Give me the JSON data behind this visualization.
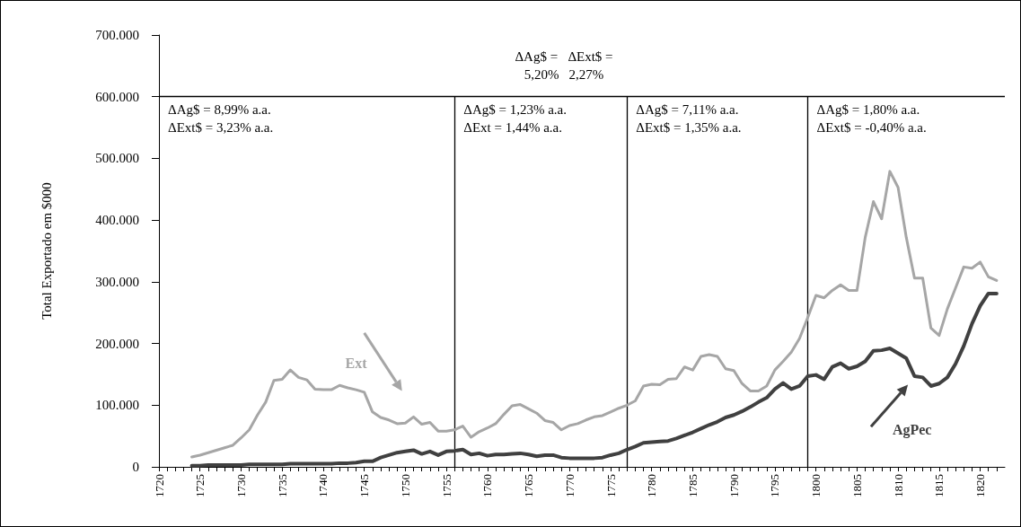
{
  "chart_data": {
    "type": "line",
    "ylabel": "Total Exportado em $000",
    "x": [
      1724,
      1725,
      1726,
      1727,
      1728,
      1729,
      1730,
      1731,
      1732,
      1733,
      1734,
      1735,
      1736,
      1737,
      1738,
      1739,
      1740,
      1741,
      1742,
      1743,
      1744,
      1745,
      1746,
      1747,
      1748,
      1749,
      1750,
      1751,
      1752,
      1753,
      1754,
      1755,
      1756,
      1757,
      1758,
      1759,
      1760,
      1761,
      1762,
      1763,
      1764,
      1765,
      1766,
      1767,
      1768,
      1769,
      1770,
      1771,
      1772,
      1773,
      1774,
      1775,
      1776,
      1777,
      1778,
      1779,
      1780,
      1781,
      1782,
      1783,
      1784,
      1785,
      1786,
      1787,
      1788,
      1789,
      1790,
      1791,
      1792,
      1793,
      1794,
      1795,
      1796,
      1797,
      1798,
      1799,
      1800,
      1801,
      1802,
      1803,
      1804,
      1805,
      1806,
      1807,
      1808,
      1809,
      1810,
      1811,
      1812,
      1813,
      1814,
      1815,
      1816,
      1817,
      1818,
      1819,
      1820,
      1821,
      1822
    ],
    "series": [
      {
        "name": "Ext",
        "color": "#a6a6a6",
        "values": [
          16000,
          19000,
          23000,
          27000,
          31000,
          35000,
          47000,
          60000,
          84000,
          105000,
          140000,
          142000,
          157000,
          145000,
          141000,
          126000,
          125000,
          125000,
          132000,
          128000,
          125000,
          121000,
          89000,
          80000,
          76000,
          70000,
          71000,
          81000,
          69000,
          72000,
          58000,
          58000,
          60000,
          66000,
          48000,
          57000,
          63000,
          70000,
          85000,
          99000,
          101000,
          94000,
          87000,
          75000,
          72000,
          60000,
          67000,
          70000,
          76000,
          81000,
          83000,
          89000,
          95000,
          100000,
          107000,
          131000,
          134000,
          133000,
          142000,
          143000,
          162000,
          157000,
          179000,
          182000,
          179000,
          159000,
          156000,
          135000,
          123000,
          123000,
          131000,
          157000,
          171000,
          186000,
          208000,
          242000,
          278000,
          274000,
          286000,
          295000,
          286000,
          286000,
          372000,
          430000,
          402000,
          479000,
          453000,
          372000,
          306000,
          306000,
          225000,
          213000,
          256000,
          290000,
          324000,
          322000,
          332000,
          308000,
          302000
        ]
      },
      {
        "name": "AgPec",
        "color": "#404040",
        "values": [
          2000,
          2000,
          3000,
          3000,
          3000,
          3000,
          3000,
          4000,
          4000,
          4000,
          4000,
          4000,
          5000,
          5000,
          5000,
          5000,
          5000,
          5000,
          6000,
          6000,
          7000,
          9000,
          9000,
          15000,
          19000,
          23000,
          25000,
          27000,
          21000,
          25000,
          19000,
          25000,
          26000,
          28000,
          20000,
          22000,
          18000,
          20000,
          20000,
          21000,
          22000,
          20000,
          17000,
          19000,
          19000,
          15000,
          14000,
          14000,
          14000,
          14000,
          15000,
          19000,
          22000,
          28000,
          33000,
          39000,
          40000,
          41000,
          42000,
          46000,
          51000,
          56000,
          62000,
          68000,
          73000,
          80000,
          84000,
          90000,
          97000,
          105000,
          112000,
          126000,
          136000,
          126000,
          131000,
          147000,
          149000,
          142000,
          162000,
          168000,
          159000,
          163000,
          171000,
          188000,
          189000,
          192000,
          184000,
          176000,
          147000,
          145000,
          131000,
          135000,
          145000,
          167000,
          196000,
          232000,
          261000,
          281000,
          281000
        ]
      }
    ],
    "xlim": [
      1720,
      1823
    ],
    "xticks": [
      1720,
      {
        "value": 1721,
        "label": null
      },
      {
        "value": 1722,
        "label": null
      },
      {
        "value": 1723,
        "label": null
      },
      {
        "value": 1724,
        "label": null
      },
      1725,
      {
        "value": 1726,
        "label": null
      },
      {
        "value": 1727,
        "label": null
      },
      {
        "value": 1728,
        "label": null
      },
      {
        "value": 1729,
        "label": null
      },
      1730,
      {
        "value": 1731,
        "label": null
      },
      {
        "value": 1732,
        "label": null
      },
      {
        "value": 1733,
        "label": null
      },
      {
        "value": 1734,
        "label": null
      },
      1735,
      {
        "value": 1736,
        "label": null
      },
      {
        "value": 1737,
        "label": null
      },
      {
        "value": 1738,
        "label": null
      },
      {
        "value": 1739,
        "label": null
      },
      1740,
      {
        "value": 1741,
        "label": null
      },
      {
        "value": 1742,
        "label": null
      },
      {
        "value": 1743,
        "label": null
      },
      {
        "value": 1744,
        "label": null
      },
      1745,
      {
        "value": 1746,
        "label": null
      },
      {
        "value": 1747,
        "label": null
      },
      {
        "value": 1748,
        "label": null
      },
      {
        "value": 1749,
        "label": null
      },
      1750,
      {
        "value": 1751,
        "label": null
      },
      {
        "value": 1752,
        "label": null
      },
      {
        "value": 1753,
        "label": null
      },
      {
        "value": 1754,
        "label": null
      },
      1755,
      {
        "value": 1756,
        "label": null
      },
      {
        "value": 1757,
        "label": null
      },
      {
        "value": 1758,
        "label": null
      },
      {
        "value": 1759,
        "label": null
      },
      1760,
      {
        "value": 1761,
        "label": null
      },
      {
        "value": 1762,
        "label": null
      },
      {
        "value": 1763,
        "label": null
      },
      {
        "value": 1764,
        "label": null
      },
      1765,
      {
        "value": 1766,
        "label": null
      },
      {
        "value": 1767,
        "label": null
      },
      {
        "value": 1768,
        "label": null
      },
      {
        "value": 1769,
        "label": null
      },
      1770,
      {
        "value": 1771,
        "label": null
      },
      {
        "value": 1772,
        "label": null
      },
      {
        "value": 1773,
        "label": null
      },
      {
        "value": 1774,
        "label": null
      },
      1775,
      {
        "value": 1776,
        "label": null
      },
      {
        "value": 1777,
        "label": null
      },
      {
        "value": 1778,
        "label": null
      },
      {
        "value": 1779,
        "label": null
      },
      1780,
      {
        "value": 1781,
        "label": null
      },
      {
        "value": 1782,
        "label": null
      },
      {
        "value": 1783,
        "label": null
      },
      {
        "value": 1784,
        "label": null
      },
      1785,
      {
        "value": 1786,
        "label": null
      },
      {
        "value": 1787,
        "label": null
      },
      {
        "value": 1788,
        "label": null
      },
      {
        "value": 1789,
        "label": null
      },
      1790,
      {
        "value": 1791,
        "label": null
      },
      {
        "value": 1792,
        "label": null
      },
      {
        "value": 1793,
        "label": null
      },
      {
        "value": 1794,
        "label": null
      },
      1795,
      {
        "value": 1796,
        "label": null
      },
      {
        "value": 1797,
        "label": null
      },
      {
        "value": 1798,
        "label": null
      },
      {
        "value": 1799,
        "label": null
      },
      1800,
      {
        "value": 1801,
        "label": null
      },
      {
        "value": 1802,
        "label": null
      },
      {
        "value": 1803,
        "label": null
      },
      {
        "value": 1804,
        "label": null
      },
      1805,
      {
        "value": 1806,
        "label": null
      },
      {
        "value": 1807,
        "label": null
      },
      {
        "value": 1808,
        "label": null
      },
      {
        "value": 1809,
        "label": null
      },
      1810,
      {
        "value": 1811,
        "label": null
      },
      {
        "value": 1812,
        "label": null
      },
      {
        "value": 1813,
        "label": null
      },
      {
        "value": 1814,
        "label": null
      },
      1815,
      {
        "value": 1816,
        "label": null
      },
      {
        "value": 1817,
        "label": null
      },
      {
        "value": 1818,
        "label": null
      },
      {
        "value": 1819,
        "label": null
      },
      1820,
      {
        "value": 1821,
        "label": null
      },
      {
        "value": 1822,
        "label": null
      }
    ],
    "ylim": [
      0,
      700000
    ],
    "yticks": [
      0,
      {
        "value": 100000,
        "label": "100.000"
      },
      {
        "value": 200000,
        "label": "200.000"
      },
      {
        "value": 300000,
        "label": "300.000"
      },
      {
        "value": 400000,
        "label": "400.000"
      },
      {
        "value": 500000,
        "label": "500.000"
      },
      {
        "value": 600000,
        "label": "600.000"
      },
      {
        "value": 700000,
        "label": "700.000"
      }
    ],
    "ref_lines": [
      {
        "axis": "y",
        "value": 600000,
        "color": "#000000"
      },
      {
        "axis": "x",
        "value": 1756,
        "color": "#000000"
      },
      {
        "axis": "x",
        "value": 1777,
        "color": "#000000"
      },
      {
        "axis": "x",
        "value": 1799,
        "color": "#000000"
      }
    ],
    "annotations": [
      "ΔAg$ =   ΔExt$ =\n5,20%   2,27%",
      "ΔAg$ = 8,99% a.a.\nΔExt$ = 3,23% a.a.",
      "ΔAg$ = 1,23% a.a.\nΔExt = 1,44% a.a.",
      "ΔAg$ = 7,11% a.a.\nΔExt$ = 1,35% a.a.",
      "ΔAg$ = 1,80% a.a.\nΔExt$ = -0,40% a.a."
    ],
    "grid": false,
    "marker": "none",
    "line_style": "solid"
  }
}
